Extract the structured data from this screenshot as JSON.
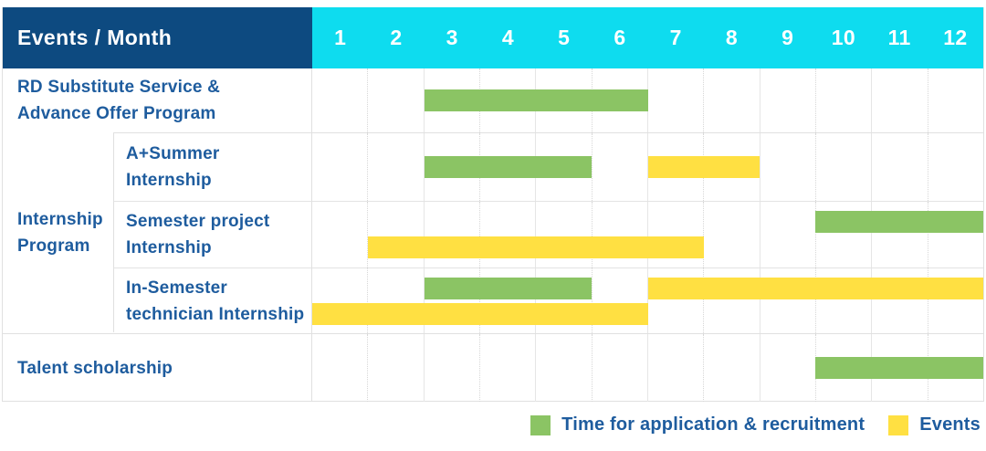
{
  "header": {
    "label": "Events / Month",
    "months": [
      "1",
      "2",
      "3",
      "4",
      "5",
      "6",
      "7",
      "8",
      "9",
      "10",
      "11",
      "12"
    ]
  },
  "legend": {
    "items": [
      {
        "kind": "application",
        "label": "Time for application & recruitment"
      },
      {
        "kind": "event",
        "label": "Events"
      }
    ]
  },
  "colors": {
    "header_bg": "#0d4a80",
    "months_bg": "#0edcef",
    "application": "#8bc464",
    "event": "#ffe042",
    "label_text": "#1e5c9e"
  },
  "chart_data": {
    "type": "table",
    "subtype": "gantt",
    "title": "Events / Month",
    "x_categories": [
      "1",
      "2",
      "3",
      "4",
      "5",
      "6",
      "7",
      "8",
      "9",
      "10",
      "11",
      "12"
    ],
    "x_range": [
      1,
      12
    ],
    "legend_position": "bottom-right",
    "legend_entries": [
      "Time for application & recruitment",
      "Events"
    ],
    "groups": [
      {
        "name": "Internship Program",
        "label_lines": [
          "Internship",
          "Program"
        ],
        "row_indexes": [
          1,
          2,
          3
        ]
      }
    ],
    "rows": [
      {
        "event": "RD Substitute Service & Advance Offer Program",
        "label_lines": [
          "RD Substitute Service &",
          "Advance Offer Program"
        ],
        "group": null,
        "lines": [
          [
            {
              "kind": "application",
              "start_month": 3,
              "end_month": 6
            }
          ]
        ]
      },
      {
        "event": "A+Summer Internship",
        "label_lines": [
          "A+Summer",
          "Internship"
        ],
        "group": "Internship Program",
        "lines": [
          [
            {
              "kind": "application",
              "start_month": 3,
              "end_month": 5
            },
            {
              "kind": "event",
              "start_month": 7,
              "end_month": 8
            }
          ]
        ]
      },
      {
        "event": "Semester project Internship",
        "label_lines": [
          "Semester project",
          "Internship"
        ],
        "group": "Internship Program",
        "lines": [
          [
            {
              "kind": "application",
              "start_month": 10,
              "end_month": 12
            }
          ],
          [
            {
              "kind": "event",
              "start_month": 2,
              "end_month": 7
            }
          ]
        ]
      },
      {
        "event": "In-Semester technician Internship",
        "label_lines": [
          "In-Semester",
          "technician Internship"
        ],
        "group": "Internship Program",
        "lines": [
          [
            {
              "kind": "application",
              "start_month": 3,
              "end_month": 5
            },
            {
              "kind": "event",
              "start_month": 7,
              "end_month": 12
            }
          ],
          [
            {
              "kind": "event",
              "start_month": 1,
              "end_month": 6
            }
          ]
        ]
      },
      {
        "event": "Talent scholarship",
        "label_lines": [
          "Talent scholarship"
        ],
        "group": null,
        "lines": [
          [
            {
              "kind": "application",
              "start_month": 10,
              "end_month": 12
            }
          ]
        ]
      }
    ]
  }
}
